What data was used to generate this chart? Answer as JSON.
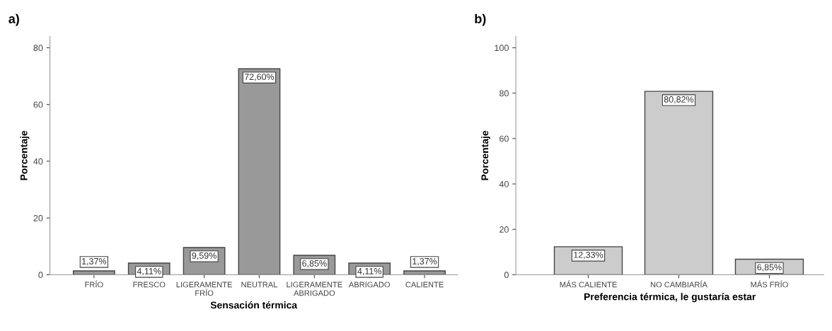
{
  "chart_data": [
    {
      "type": "bar",
      "title": "a)",
      "xlabel": "Sensación térmica",
      "ylabel": "Porcentaje",
      "categories": [
        "FRÍO",
        "FRESCO",
        "LIGERAMENTE\nFRÍO",
        "NEUTRAL",
        "LIGERAMENTE\nABRIGADO",
        "ABRIGADO",
        "CALIENTE"
      ],
      "values": [
        1.37,
        4.11,
        9.59,
        72.6,
        6.85,
        4.11,
        1.37
      ],
      "value_labels": [
        "1,37%",
        "4,11%",
        "9,59%",
        "72,60%",
        "6,85%",
        "4,11%",
        "1,37%"
      ],
      "color": "#999999",
      "ylim": [
        0,
        84
      ],
      "yticks": [
        0,
        20,
        40,
        60,
        80
      ],
      "grid": false,
      "legend": false
    },
    {
      "type": "bar",
      "title": "b)",
      "xlabel": "Preferencia térmica, le gustaría estar",
      "ylabel": "Porcentaje",
      "categories": [
        "MÁS CALIENTE",
        "NO CAMBIARÍA",
        "MÁS FRÍO"
      ],
      "values": [
        12.33,
        80.82,
        6.85
      ],
      "value_labels": [
        "12,33%",
        "80,82%",
        "6,85%"
      ],
      "color": "#cccccc",
      "ylim": [
        0,
        105
      ],
      "yticks": [
        0,
        20,
        40,
        60,
        80,
        100
      ],
      "grid": false,
      "legend": false
    }
  ]
}
